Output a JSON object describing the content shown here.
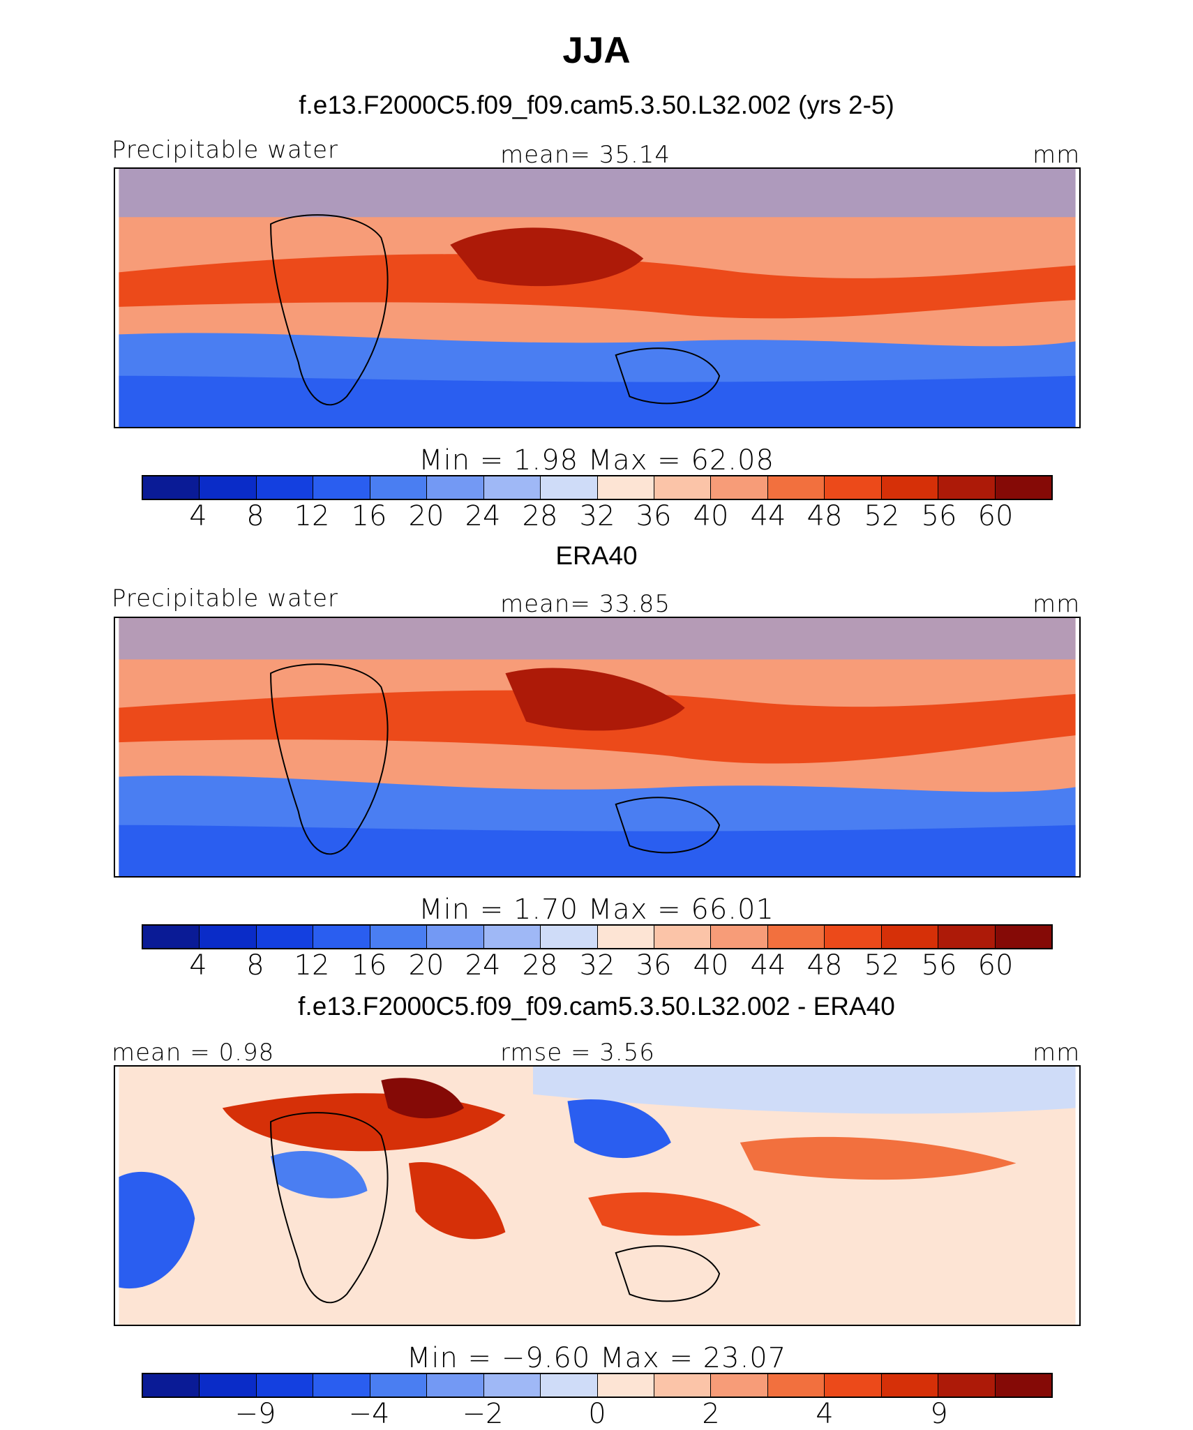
{
  "title": "JJA",
  "colors": {
    "abs_scale": [
      "#0a1b96",
      "#0a2cc8",
      "#1440e0",
      "#2a5ef0",
      "#4a7ef2",
      "#7399f4",
      "#9fb8f6",
      "#cfdcf8",
      "#fde4d4",
      "#fbc4a8",
      "#f79c78",
      "#f2703e",
      "#ec4a1a",
      "#d63008",
      "#ad1a08",
      "#850a06"
    ],
    "diff_scale": [
      "#0a1b96",
      "#0a2cc8",
      "#1440e0",
      "#2a5ef0",
      "#4a7ef2",
      "#7399f4",
      "#9fb8f6",
      "#cfdcf8",
      "#fde4d4",
      "#fbc4a8",
      "#f79c78",
      "#f2703e",
      "#ec4a1a",
      "#d63008",
      "#ad1a08",
      "#850a06"
    ],
    "land_outline": "#000000"
  },
  "panels": [
    {
      "id": "model",
      "header": "f.e13.F2000C5.f09_f09.cam5.3.50.L32.002 (yrs 2-5)",
      "left_label": "Precipitable water",
      "center_label": "mean=   35.14",
      "right_label": "mm",
      "minmax": "Min  =     1.98  Max  =    62.08",
      "ticks": [
        "4",
        "8",
        "12",
        "16",
        "20",
        "24",
        "28",
        "32",
        "36",
        "40",
        "44",
        "48",
        "52",
        "56",
        "60"
      ],
      "field_min": 1.98,
      "field_max": 62.08,
      "field_mean": 35.14
    },
    {
      "id": "obs",
      "header": "ERA40",
      "left_label": "Precipitable water",
      "center_label": "mean=   33.85",
      "right_label": "mm",
      "minmax": "Min  =     1.70  Max  =    66.01",
      "ticks": [
        "4",
        "8",
        "12",
        "16",
        "20",
        "24",
        "28",
        "32",
        "36",
        "40",
        "44",
        "48",
        "52",
        "56",
        "60"
      ],
      "field_min": 1.7,
      "field_max": 66.01,
      "field_mean": 33.85
    },
    {
      "id": "diff",
      "header": "f.e13.F2000C5.f09_f09.cam5.3.50.L32.002 - ERA40",
      "left_label": "mean =    0.98",
      "center_label": "rmse =    3.56",
      "right_label": "mm",
      "minmax": "Min  =   −9.60  Max  =    23.07",
      "ticks": [
        "−9",
        "−4",
        "−2",
        "0",
        "2",
        "4",
        "9"
      ],
      "field_min": -9.6,
      "field_max": 23.07,
      "field_mean": 0.98,
      "field_rmse": 3.56
    }
  ]
}
